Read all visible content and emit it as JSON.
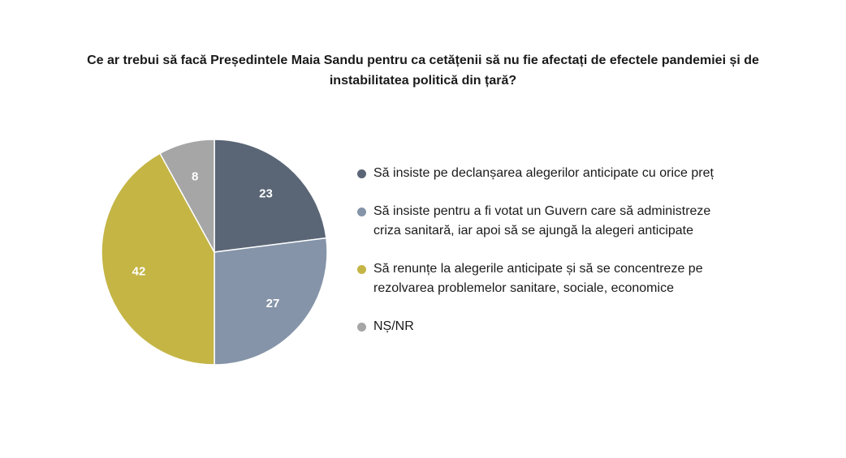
{
  "chart_data": {
    "type": "pie",
    "title": "Ce ar trebui să facă Președintele Maia Sandu pentru ca cetățenii să nu fie afectați de efectele pandemiei și de instabilitatea politică din țară?",
    "slices": [
      {
        "label": "Să insiste pe declanșarea alegerilor anticipate cu orice preț",
        "value": 23,
        "color": "#5a6676"
      },
      {
        "label": "Să insiste pentru a fi votat un Guvern care să administreze criza sanitară, iar apoi să se ajungă la alegeri anticipate",
        "value": 27,
        "color": "#8594a8"
      },
      {
        "label": "Să renunțe la alegerile anticipate și să se concentreze pe rezolvarea problemelor sanitare, sociale, economice",
        "value": 42,
        "color": "#c4b545"
      },
      {
        "label": "NȘ/NR",
        "value": 8,
        "color": "#a6a6a6"
      }
    ],
    "legend_position": "right"
  }
}
